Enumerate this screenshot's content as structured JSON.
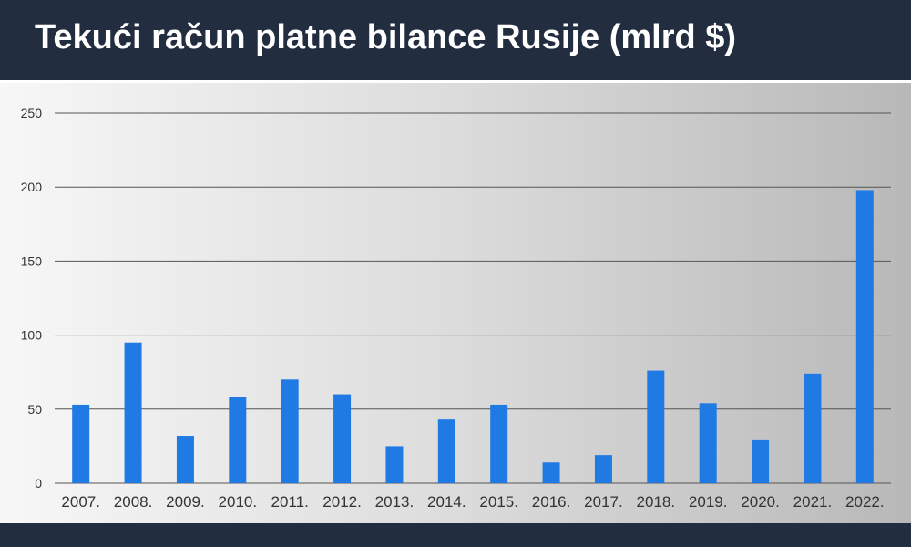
{
  "header": {
    "title": "Tekući račun platne bilance Rusije (mlrd $)"
  },
  "colors": {
    "bar": "#1f7be3",
    "header_bg": "#232d40",
    "grid": "#555555"
  },
  "chart_data": {
    "type": "bar",
    "title": "Tekući račun platne bilance Rusije (mlrd $)",
    "xlabel": "",
    "ylabel": "",
    "categories": [
      "2007.",
      "2008.",
      "2009.",
      "2010.",
      "2011.",
      "2012.",
      "2013.",
      "2014.",
      "2015.",
      "2016.",
      "2017.",
      "2018.",
      "2019.",
      "2020.",
      "2021.",
      "2022."
    ],
    "values": [
      53,
      95,
      32,
      58,
      70,
      60,
      25,
      43,
      53,
      14,
      19,
      76,
      54,
      29,
      74,
      198
    ],
    "ylim": [
      0,
      250
    ],
    "yticks": [
      0,
      50,
      100,
      150,
      200,
      250
    ],
    "grid": true,
    "legend": "none"
  }
}
